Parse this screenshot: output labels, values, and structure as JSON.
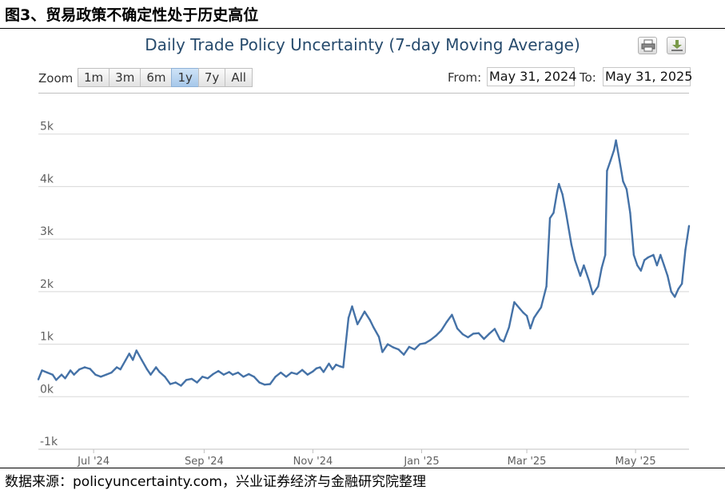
{
  "figure": {
    "title": "图3、贸易政策不确定性处于历史高位",
    "source": "数据来源：policyuncertainty.com，兴业证券经济与金融研究院整理"
  },
  "chart": {
    "title": "Daily Trade Policy Uncertainty (7-day Moving Average)",
    "print_icon": "print-icon",
    "download_icon": "download-icon"
  },
  "zoom": {
    "label": "Zoom",
    "buttons": [
      "1m",
      "3m",
      "6m",
      "1y",
      "7y",
      "All"
    ],
    "active": "1y"
  },
  "range": {
    "from_label": "From:",
    "from_value": "May 31, 2024",
    "to_label": "To:",
    "to_value": "May 31, 2025"
  },
  "colors": {
    "series": "#4572a7",
    "grid": "#d8d8d8",
    "title": "#274b6d"
  },
  "chart_data": {
    "type": "line",
    "title": "Daily Trade Policy Uncertainty (7-day Moving Average)",
    "xlabel": "",
    "ylabel": "",
    "ylim": [
      -1000,
      5300
    ],
    "y_ticks": [
      -1000,
      0,
      1000,
      2000,
      3000,
      4000,
      5000
    ],
    "y_tick_labels": [
      "-1k",
      "0k",
      "1k",
      "2k",
      "3k",
      "4k",
      "5k"
    ],
    "x_ticks": [
      "2024-07-01",
      "2024-09-01",
      "2024-11-01",
      "2025-01-01",
      "2025-03-01",
      "2025-05-01"
    ],
    "x_tick_labels": [
      "Jul '24",
      "Sep '24",
      "Nov '24",
      "Jan '25",
      "Mar '25",
      "May '25"
    ],
    "xlim": [
      "2024-05-31",
      "2025-05-31"
    ],
    "grid": true,
    "series": [
      {
        "points": [
          [
            "2024-05-31",
            330
          ],
          [
            "2024-06-02",
            500
          ],
          [
            "2024-06-05",
            460
          ],
          [
            "2024-06-08",
            420
          ],
          [
            "2024-06-10",
            320
          ],
          [
            "2024-06-13",
            420
          ],
          [
            "2024-06-15",
            350
          ],
          [
            "2024-06-18",
            500
          ],
          [
            "2024-06-20",
            420
          ],
          [
            "2024-06-23",
            520
          ],
          [
            "2024-06-26",
            560
          ],
          [
            "2024-06-29",
            530
          ],
          [
            "2024-07-02",
            420
          ],
          [
            "2024-07-05",
            380
          ],
          [
            "2024-07-08",
            420
          ],
          [
            "2024-07-11",
            460
          ],
          [
            "2024-07-14",
            560
          ],
          [
            "2024-07-16",
            520
          ],
          [
            "2024-07-19",
            700
          ],
          [
            "2024-07-21",
            820
          ],
          [
            "2024-07-23",
            700
          ],
          [
            "2024-07-25",
            880
          ],
          [
            "2024-07-28",
            700
          ],
          [
            "2024-07-31",
            520
          ],
          [
            "2024-08-02",
            420
          ],
          [
            "2024-08-05",
            560
          ],
          [
            "2024-08-07",
            470
          ],
          [
            "2024-08-10",
            380
          ],
          [
            "2024-08-13",
            240
          ],
          [
            "2024-08-16",
            270
          ],
          [
            "2024-08-19",
            210
          ],
          [
            "2024-08-22",
            320
          ],
          [
            "2024-08-25",
            340
          ],
          [
            "2024-08-28",
            270
          ],
          [
            "2024-08-31",
            380
          ],
          [
            "2024-09-03",
            350
          ],
          [
            "2024-09-06",
            430
          ],
          [
            "2024-09-09",
            490
          ],
          [
            "2024-09-12",
            420
          ],
          [
            "2024-09-15",
            470
          ],
          [
            "2024-09-17",
            420
          ],
          [
            "2024-09-20",
            460
          ],
          [
            "2024-09-23",
            380
          ],
          [
            "2024-09-26",
            430
          ],
          [
            "2024-09-29",
            380
          ],
          [
            "2024-10-02",
            270
          ],
          [
            "2024-10-05",
            230
          ],
          [
            "2024-10-08",
            240
          ],
          [
            "2024-10-11",
            380
          ],
          [
            "2024-10-14",
            460
          ],
          [
            "2024-10-17",
            380
          ],
          [
            "2024-10-20",
            460
          ],
          [
            "2024-10-23",
            430
          ],
          [
            "2024-10-26",
            510
          ],
          [
            "2024-10-29",
            420
          ],
          [
            "2024-11-01",
            480
          ],
          [
            "2024-11-03",
            540
          ],
          [
            "2024-11-05",
            560
          ],
          [
            "2024-11-07",
            470
          ],
          [
            "2024-11-10",
            630
          ],
          [
            "2024-11-12",
            520
          ],
          [
            "2024-11-14",
            610
          ],
          [
            "2024-11-16",
            580
          ],
          [
            "2024-11-18",
            560
          ],
          [
            "2024-11-21",
            1500
          ],
          [
            "2024-11-23",
            1720
          ],
          [
            "2024-11-26",
            1380
          ],
          [
            "2024-11-28",
            1500
          ],
          [
            "2024-11-30",
            1620
          ],
          [
            "2024-12-03",
            1460
          ],
          [
            "2024-12-05",
            1320
          ],
          [
            "2024-12-08",
            1140
          ],
          [
            "2024-12-10",
            850
          ],
          [
            "2024-12-13",
            1000
          ],
          [
            "2024-12-16",
            940
          ],
          [
            "2024-12-19",
            900
          ],
          [
            "2024-12-22",
            800
          ],
          [
            "2024-12-25",
            950
          ],
          [
            "2024-12-28",
            900
          ],
          [
            "2024-12-31",
            1000
          ],
          [
            "2025-01-03",
            1020
          ],
          [
            "2025-01-06",
            1080
          ],
          [
            "2025-01-09",
            1160
          ],
          [
            "2025-01-12",
            1260
          ],
          [
            "2025-01-15",
            1420
          ],
          [
            "2025-01-18",
            1560
          ],
          [
            "2025-01-21",
            1300
          ],
          [
            "2025-01-24",
            1190
          ],
          [
            "2025-01-27",
            1130
          ],
          [
            "2025-01-30",
            1200
          ],
          [
            "2025-02-02",
            1210
          ],
          [
            "2025-02-05",
            1100
          ],
          [
            "2025-02-08",
            1200
          ],
          [
            "2025-02-11",
            1290
          ],
          [
            "2025-02-14",
            1090
          ],
          [
            "2025-02-16",
            1050
          ],
          [
            "2025-02-19",
            1320
          ],
          [
            "2025-02-22",
            1800
          ],
          [
            "2025-02-25",
            1680
          ],
          [
            "2025-02-27",
            1600
          ],
          [
            "2025-03-01",
            1540
          ],
          [
            "2025-03-03",
            1300
          ],
          [
            "2025-03-05",
            1500
          ],
          [
            "2025-03-07",
            1600
          ],
          [
            "2025-03-09",
            1700
          ],
          [
            "2025-03-12",
            2100
          ],
          [
            "2025-03-14",
            3400
          ],
          [
            "2025-03-16",
            3500
          ],
          [
            "2025-03-18",
            3900
          ],
          [
            "2025-03-19",
            4050
          ],
          [
            "2025-03-21",
            3850
          ],
          [
            "2025-03-23",
            3500
          ],
          [
            "2025-03-26",
            2900
          ],
          [
            "2025-03-28",
            2600
          ],
          [
            "2025-03-31",
            2300
          ],
          [
            "2025-04-02",
            2500
          ],
          [
            "2025-04-05",
            2200
          ],
          [
            "2025-04-07",
            1950
          ],
          [
            "2025-04-10",
            2100
          ],
          [
            "2025-04-12",
            2450
          ],
          [
            "2025-04-14",
            2700
          ],
          [
            "2025-04-15",
            4300
          ],
          [
            "2025-04-17",
            4500
          ],
          [
            "2025-04-19",
            4700
          ],
          [
            "2025-04-20",
            4880
          ],
          [
            "2025-04-22",
            4500
          ],
          [
            "2025-04-24",
            4100
          ],
          [
            "2025-04-26",
            3950
          ],
          [
            "2025-04-28",
            3500
          ],
          [
            "2025-04-30",
            2700
          ],
          [
            "2025-05-02",
            2500
          ],
          [
            "2025-05-04",
            2400
          ],
          [
            "2025-05-06",
            2600
          ],
          [
            "2025-05-08",
            2650
          ],
          [
            "2025-05-11",
            2700
          ],
          [
            "2025-05-13",
            2500
          ],
          [
            "2025-05-15",
            2700
          ],
          [
            "2025-05-17",
            2500
          ],
          [
            "2025-05-19",
            2300
          ],
          [
            "2025-05-21",
            2000
          ],
          [
            "2025-05-23",
            1900
          ],
          [
            "2025-05-25",
            2050
          ],
          [
            "2025-05-27",
            2150
          ],
          [
            "2025-05-29",
            2800
          ],
          [
            "2025-05-31",
            3250
          ]
        ]
      }
    ]
  }
}
